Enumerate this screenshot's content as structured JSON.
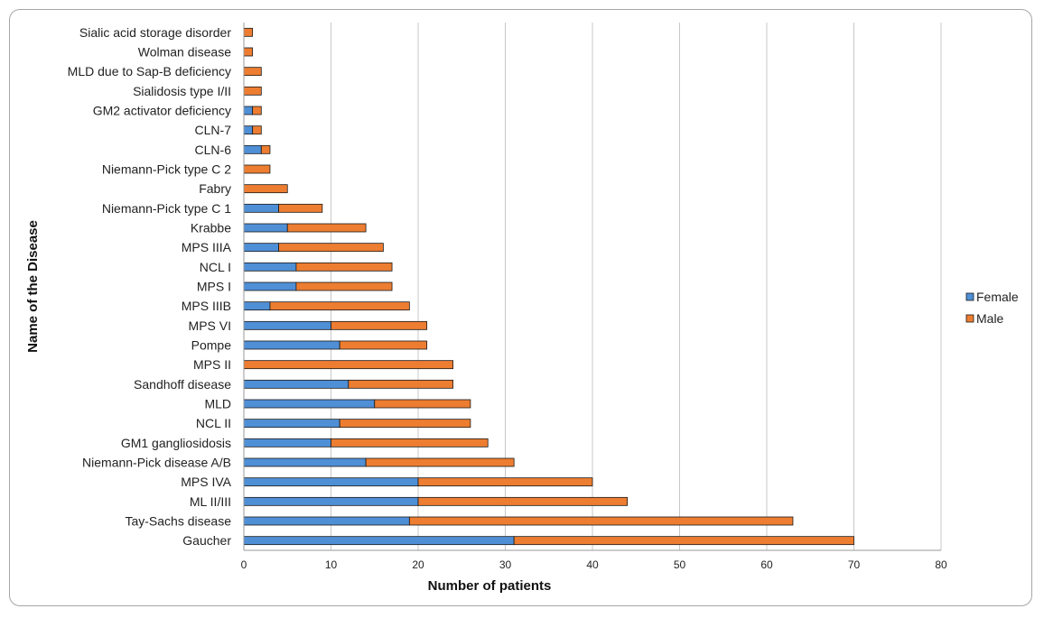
{
  "chart_data": {
    "type": "bar",
    "orientation": "horizontal",
    "stacked": true,
    "title": "",
    "xlabel": "Number of patients",
    "ylabel": "Name of the Disease",
    "xlim": [
      0,
      80
    ],
    "xticks": [
      0,
      10,
      20,
      30,
      40,
      50,
      60,
      70,
      80
    ],
    "grid": "vertical",
    "legend_position": "right",
    "categories": [
      "Sialic acid storage disorder",
      "Wolman disease",
      "MLD due to Sap-B deficiency",
      "Sialidosis type I/II",
      "GM2 activator deficiency",
      "CLN-7",
      "CLN-6",
      "Niemann-Pick type C 2",
      "Fabry",
      "Niemann-Pick type C 1",
      "Krabbe",
      "MPS IIIA",
      "NCL I",
      "MPS I",
      "MPS IIIB",
      "MPS VI",
      "Pompe",
      "MPS II",
      "Sandhoff disease",
      "MLD",
      "NCL II",
      "GM1 gangliosidosis",
      "Niemann-Pick disease A/B",
      "MPS IVA",
      "ML II/III",
      "Tay-Sachs disease",
      "Gaucher"
    ],
    "series": [
      {
        "name": "Female",
        "color": "#4f8fd6",
        "values": [
          0,
          0,
          0,
          0,
          1,
          1,
          2,
          0,
          0,
          4,
          5,
          4,
          6,
          6,
          3,
          10,
          11,
          0,
          12,
          15,
          11,
          10,
          14,
          20,
          20,
          19,
          31
        ]
      },
      {
        "name": "Male",
        "color": "#ed7d31",
        "values": [
          1,
          1,
          2,
          2,
          1,
          1,
          1,
          3,
          5,
          5,
          9,
          12,
          11,
          11,
          16,
          11,
          10,
          24,
          12,
          11,
          15,
          18,
          17,
          20,
          24,
          44,
          39
        ]
      }
    ]
  }
}
